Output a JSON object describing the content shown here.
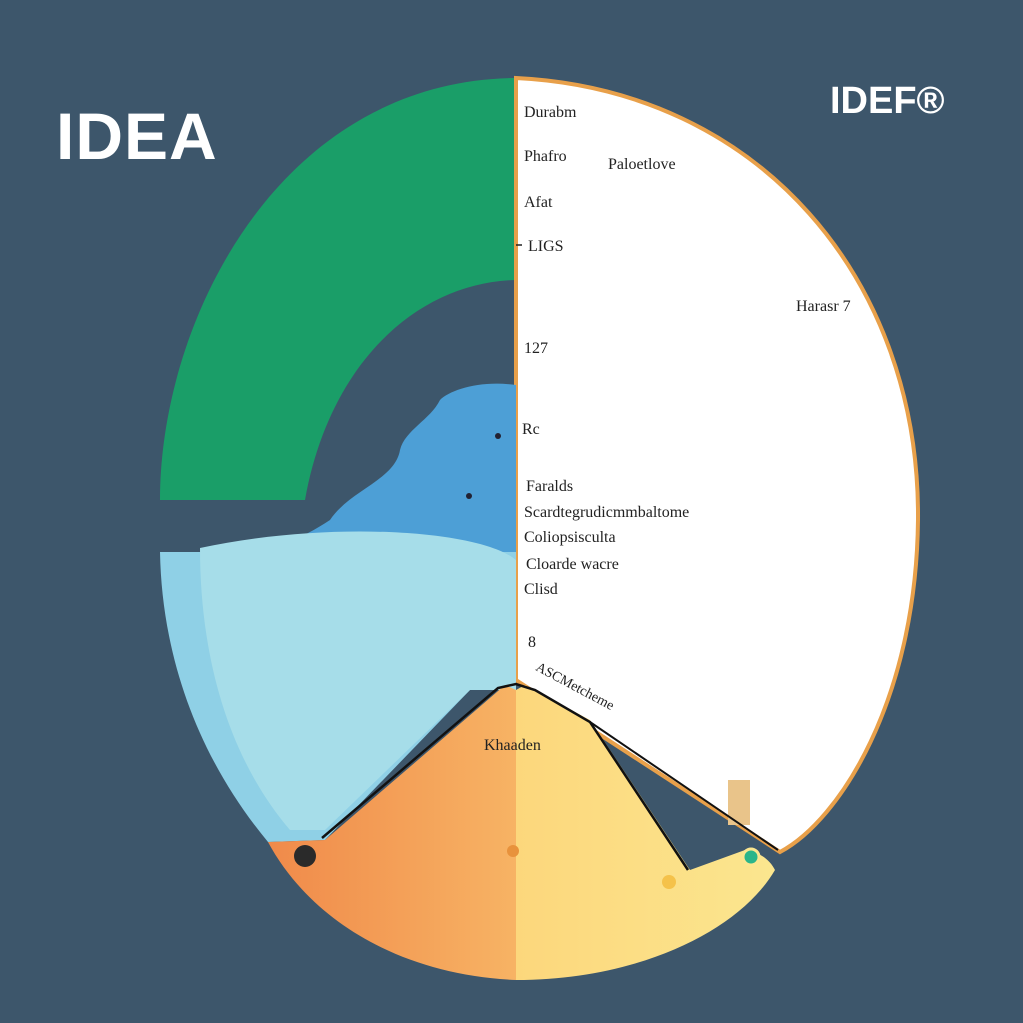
{
  "titles": {
    "left": "IDEA",
    "right": "IDEF®"
  },
  "labels": {
    "l1": "Durabm",
    "l2": "Phafro",
    "l3": "Paloetlove",
    "l4": "Afat",
    "l5": "LIGS",
    "l6": "Harasr 7",
    "l7": "127",
    "l8": "Rc",
    "l9": "Faralds",
    "l10": "Scardtegrudicmmbaltome",
    "l11": "Coliopsisculta",
    "l12": "Cloarde wacre",
    "l13": "Clisd",
    "l14": "8",
    "l15": "ASCMetcheme",
    "l16": "Khaaden"
  },
  "colors": {
    "background": "#3d566b",
    "green": "#1a9e68",
    "blue": "#4d9fd6",
    "light_blue": "#9fd9e8",
    "orange": "#f4a15d",
    "yellow": "#fbd97a",
    "white": "#ffffff",
    "rim": "#e8a04a"
  }
}
